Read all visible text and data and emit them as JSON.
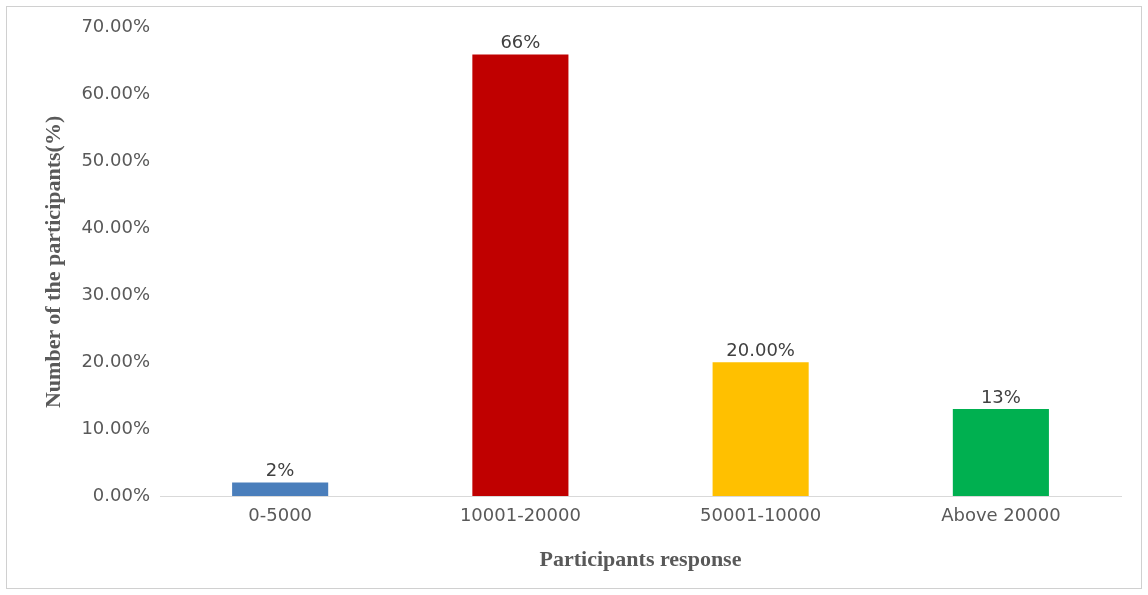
{
  "chart_data": {
    "type": "bar",
    "xlabel": "Participants response",
    "ylabel": "Number of the participants(%)",
    "categories": [
      "0-5000",
      "10001-20000",
      "50001-10000",
      "Above 20000"
    ],
    "values": [
      2,
      66,
      20,
      13
    ],
    "colors": [
      "#4a7ebb",
      "#c00000",
      "#ffc000",
      "#00b050"
    ],
    "value_labels": [
      "2%",
      "66%",
      "20.00%",
      "13%"
    ],
    "ylim": [
      0,
      70
    ],
    "yticks": [
      {
        "value": 0,
        "label": "0.00%"
      },
      {
        "value": 10,
        "label": "10.00%"
      },
      {
        "value": 20,
        "label": "20.00%"
      },
      {
        "value": 30,
        "label": "30.00%"
      },
      {
        "value": 40,
        "label": "40.00%"
      },
      {
        "value": 50,
        "label": "50.00%"
      },
      {
        "value": 60,
        "label": "60.00%"
      },
      {
        "value": 70,
        "label": "70.00%"
      }
    ],
    "grid": false,
    "legend": false
  }
}
